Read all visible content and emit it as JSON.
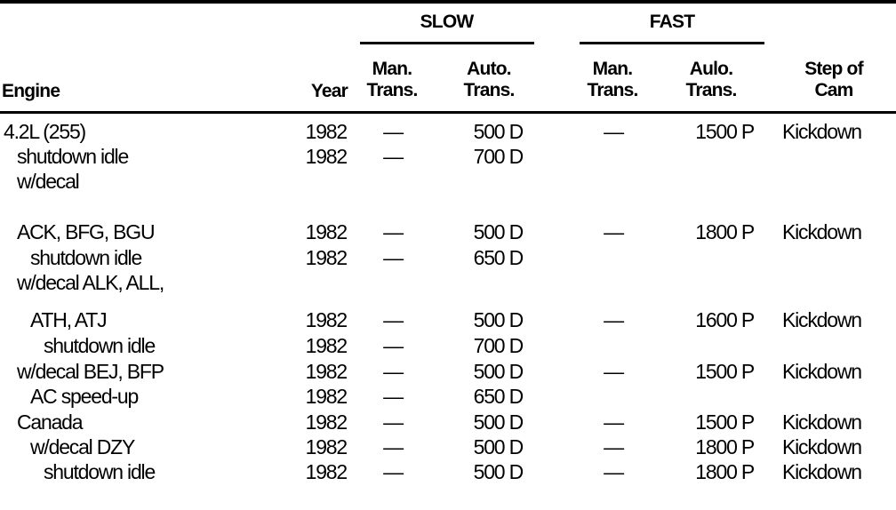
{
  "header": {
    "group_slow": "SLOW",
    "group_fast": "FAST",
    "engine": "Engine",
    "year": "Year",
    "slow_man": [
      "Man.",
      "Trans."
    ],
    "slow_auto": [
      "Auto.",
      "Trans."
    ],
    "fast_man": [
      "Man.",
      "Trans."
    ],
    "fast_auto": [
      "Aulo.",
      "Trans."
    ],
    "cam": [
      "Step of",
      "Cam"
    ]
  },
  "rows": [
    {
      "engine": "4.2L (255)",
      "indent": 0,
      "year": "1982",
      "slow_man": "—",
      "slow_auto": "500 D",
      "fast_man": "—",
      "fast_auto": "1500 P",
      "cam": "Kickdown"
    },
    {
      "engine": "shutdown idle",
      "indent": 1,
      "year": "1982",
      "slow_man": "—",
      "slow_auto": "700 D",
      "fast_man": "",
      "fast_auto": "",
      "cam": ""
    },
    {
      "engine": "w/decal",
      "indent": 1,
      "year": "",
      "slow_man": "",
      "slow_auto": "",
      "fast_man": "",
      "fast_auto": "",
      "cam": ""
    },
    {
      "engine": "ACK, BFG, BGU",
      "indent": 1,
      "year": "1982",
      "slow_man": "—",
      "slow_auto": "500 D",
      "fast_man": "—",
      "fast_auto": "1800 P",
      "cam": "Kickdown"
    },
    {
      "engine": "shutdown idle",
      "indent": 2,
      "year": "1982",
      "slow_man": "—",
      "slow_auto": "650 D",
      "fast_man": "",
      "fast_auto": "",
      "cam": ""
    },
    {
      "engine": "w/decal ALK, ALL,",
      "indent": 1,
      "year": "",
      "slow_man": "",
      "slow_auto": "",
      "fast_man": "",
      "fast_auto": "",
      "cam": ""
    },
    {
      "engine": "ATH, ATJ",
      "indent": 2,
      "year": "1982",
      "slow_man": "—",
      "slow_auto": "500 D",
      "fast_man": "—",
      "fast_auto": "1600 P",
      "cam": "Kickdown"
    },
    {
      "engine": "shutdown idle",
      "indent": 3,
      "year": "1982",
      "slow_man": "—",
      "slow_auto": "700 D",
      "fast_man": "",
      "fast_auto": "",
      "cam": ""
    },
    {
      "engine": "w/decal BEJ, BFP",
      "indent": 1,
      "year": "1982",
      "slow_man": "—",
      "slow_auto": "500 D",
      "fast_man": "—",
      "fast_auto": "1500 P",
      "cam": "Kickdown"
    },
    {
      "engine": "AC speed-up",
      "indent": 2,
      "year": "1982",
      "slow_man": "—",
      "slow_auto": "650 D",
      "fast_man": "",
      "fast_auto": "",
      "cam": ""
    },
    {
      "engine": "Canada",
      "indent": 1,
      "year": "1982",
      "slow_man": "—",
      "slow_auto": "500 D",
      "fast_man": "—",
      "fast_auto": "1500 P",
      "cam": "Kickdown"
    },
    {
      "engine": "w/decal DZY",
      "indent": 2,
      "year": "1982",
      "slow_man": "—",
      "slow_auto": "500 D",
      "fast_man": "—",
      "fast_auto": "1800 P",
      "cam": "Kickdown"
    },
    {
      "engine": "shutdown idle",
      "indent": 3,
      "year": "1982",
      "slow_man": "—",
      "slow_auto": "500 D",
      "fast_man": "—",
      "fast_auto": "1800 P",
      "cam": "Kickdown"
    }
  ]
}
